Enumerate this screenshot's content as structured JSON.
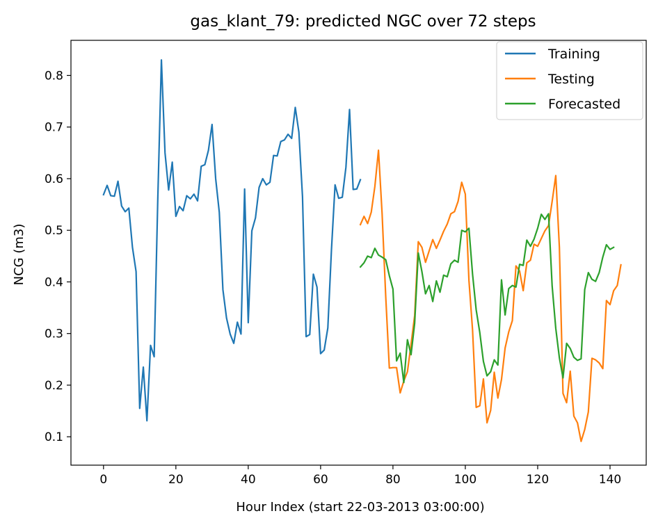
{
  "chart_data": {
    "type": "line",
    "title": "gas_klant_79: predicted NGC over 72 steps",
    "xlabel": "Hour Index (start 22-03-2013 03:00:00)",
    "ylabel": "NCG (m3)",
    "xlim": [
      -9,
      150
    ],
    "ylim": [
      0.045,
      0.868
    ],
    "xticks": [
      0,
      20,
      40,
      60,
      80,
      100,
      120,
      140
    ],
    "yticks": [
      0.1,
      0.2,
      0.3,
      0.4,
      0.5,
      0.6,
      0.7,
      0.8
    ],
    "ytick_labels": [
      "0.1",
      "0.2",
      "0.3",
      "0.4",
      "0.5",
      "0.6",
      "0.7",
      "0.8"
    ],
    "grid": false,
    "legend_position": "top-right",
    "series": [
      {
        "name": "Training",
        "color": "#1f77b4",
        "x_start": 0,
        "values": [
          0.569,
          0.587,
          0.567,
          0.566,
          0.595,
          0.547,
          0.536,
          0.543,
          0.467,
          0.42,
          0.155,
          0.235,
          0.131,
          0.277,
          0.255,
          0.56,
          0.83,
          0.65,
          0.578,
          0.632,
          0.527,
          0.546,
          0.538,
          0.567,
          0.561,
          0.57,
          0.557,
          0.624,
          0.627,
          0.655,
          0.705,
          0.6,
          0.535,
          0.385,
          0.33,
          0.299,
          0.281,
          0.322,
          0.299,
          0.58,
          0.321,
          0.499,
          0.524,
          0.583,
          0.6,
          0.588,
          0.593,
          0.645,
          0.644,
          0.672,
          0.675,
          0.686,
          0.678,
          0.738,
          0.69,
          0.565,
          0.294,
          0.298,
          0.415,
          0.39,
          0.261,
          0.268,
          0.311,
          0.462,
          0.588,
          0.562,
          0.564,
          0.622,
          0.734,
          0.579,
          0.58,
          0.598
        ]
      },
      {
        "name": "Testing",
        "color": "#ff7f0e",
        "x_start": 71,
        "values": [
          0.511,
          0.527,
          0.513,
          0.535,
          0.585,
          0.655,
          0.532,
          0.372,
          0.233,
          0.234,
          0.234,
          0.185,
          0.208,
          0.226,
          0.279,
          0.335,
          0.478,
          0.467,
          0.438,
          0.46,
          0.482,
          0.465,
          0.481,
          0.498,
          0.512,
          0.532,
          0.536,
          0.556,
          0.593,
          0.57,
          0.403,
          0.307,
          0.157,
          0.16,
          0.212,
          0.127,
          0.151,
          0.225,
          0.175,
          0.211,
          0.272,
          0.303,
          0.325,
          0.431,
          0.421,
          0.383,
          0.437,
          0.442,
          0.473,
          0.469,
          0.484,
          0.499,
          0.509,
          0.556,
          0.606,
          0.467,
          0.184,
          0.166,
          0.227,
          0.14,
          0.127,
          0.091,
          0.114,
          0.148,
          0.252,
          0.249,
          0.243,
          0.232,
          0.364,
          0.356,
          0.383,
          0.393,
          0.433
        ]
      },
      {
        "name": "Forecasted",
        "color": "#2ca02c",
        "x_start": 71,
        "values": [
          0.429,
          0.437,
          0.45,
          0.447,
          0.465,
          0.452,
          0.448,
          0.443,
          0.412,
          0.386,
          0.247,
          0.262,
          0.205,
          0.288,
          0.259,
          0.32,
          0.456,
          0.42,
          0.377,
          0.393,
          0.362,
          0.402,
          0.38,
          0.413,
          0.41,
          0.435,
          0.442,
          0.438,
          0.5,
          0.497,
          0.504,
          0.415,
          0.346,
          0.302,
          0.246,
          0.218,
          0.226,
          0.249,
          0.239,
          0.404,
          0.336,
          0.387,
          0.393,
          0.39,
          0.434,
          0.432,
          0.481,
          0.469,
          0.483,
          0.504,
          0.531,
          0.521,
          0.532,
          0.392,
          0.31,
          0.253,
          0.214,
          0.281,
          0.271,
          0.254,
          0.248,
          0.251,
          0.385,
          0.418,
          0.405,
          0.401,
          0.418,
          0.448,
          0.472,
          0.463,
          0.467
        ]
      }
    ]
  }
}
